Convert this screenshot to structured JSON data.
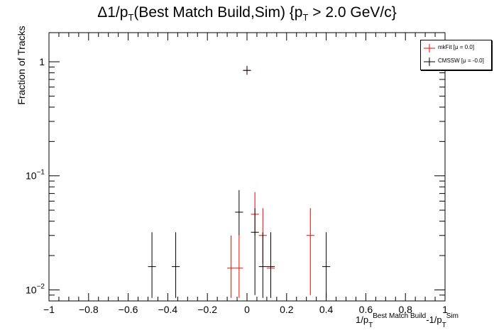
{
  "chart_data": {
    "type": "scatter",
    "title": "Δ1/p_T(Best Match Build,Sim) {p_T > 2.0 GeV/c}",
    "title_parts": {
      "a": "Δ1/p",
      "a_sub": "T",
      "b": "(Best Match Build,Sim) {p",
      "b_sub": "T",
      "c": " > 2.0 GeV/c}"
    },
    "ylabel": "Fraction of Tracks",
    "xlabel_parts": {
      "a": "1/p",
      "a_sub": "T",
      "a_sup": "Best Match Build",
      "b": "-1/p",
      "b_sub": "T",
      "b_sup": "Sim"
    },
    "xlim": [
      -1,
      1
    ],
    "ylim": [
      0.008,
      1.8
    ],
    "yscale": "log",
    "x_ticks": [
      "−1",
      "−0.8",
      "−0.6",
      "−0.4",
      "−0.2",
      "0",
      "0.2",
      "0.4",
      "0.6",
      "0.8",
      "1"
    ],
    "x_tick_values": [
      -1,
      -0.8,
      -0.6,
      -0.4,
      -0.2,
      0,
      0.2,
      0.4,
      0.6,
      0.8,
      1
    ],
    "y_ticks": [
      {
        "value": 1,
        "base": "1",
        "exp": ""
      },
      {
        "value": 0.1,
        "base": "10",
        "exp": "−1"
      },
      {
        "value": 0.01,
        "base": "10",
        "exp": "−2"
      }
    ],
    "bin_width": 0.04,
    "grid": false,
    "legend_position": "top-right",
    "series": [
      {
        "name": "mkFit  [μ =  0.0]",
        "color": "#ff0000",
        "points": [
          {
            "x": -0.08,
            "y": 0.0155,
            "lo": 0.0085,
            "hi": 0.03
          },
          {
            "x": -0.04,
            "y": 0.0155,
            "lo": 0.0085,
            "hi": 0.03
          },
          {
            "x": 0.0,
            "y": 0.84,
            "lo": 0.77,
            "hi": 0.92
          },
          {
            "x": 0.04,
            "y": 0.046,
            "lo": 0.03,
            "hi": 0.072
          },
          {
            "x": 0.08,
            "y": 0.03,
            "lo": 0.017,
            "hi": 0.052
          },
          {
            "x": 0.12,
            "y": 0.0155,
            "lo": 0.0085,
            "hi": 0.03
          },
          {
            "x": 0.32,
            "y": 0.03,
            "lo": 0.009,
            "hi": 0.052
          }
        ]
      },
      {
        "name": "CMSSW  [μ = -0.0]",
        "color": "#000000",
        "points": [
          {
            "x": -0.48,
            "y": 0.016,
            "lo": 0.0085,
            "hi": 0.032
          },
          {
            "x": -0.36,
            "y": 0.016,
            "lo": 0.0085,
            "hi": 0.032
          },
          {
            "x": -0.04,
            "y": 0.048,
            "lo": 0.03,
            "hi": 0.075
          },
          {
            "x": 0.0,
            "y": 0.84,
            "lo": 0.77,
            "hi": 0.92
          },
          {
            "x": 0.04,
            "y": 0.032,
            "lo": 0.009,
            "hi": 0.052
          },
          {
            "x": 0.08,
            "y": 0.016,
            "lo": 0.0085,
            "hi": 0.032
          },
          {
            "x": 0.12,
            "y": 0.016,
            "lo": 0.0085,
            "hi": 0.032
          },
          {
            "x": 0.4,
            "y": 0.016,
            "lo": 0.0085,
            "hi": 0.032
          }
        ]
      }
    ]
  }
}
